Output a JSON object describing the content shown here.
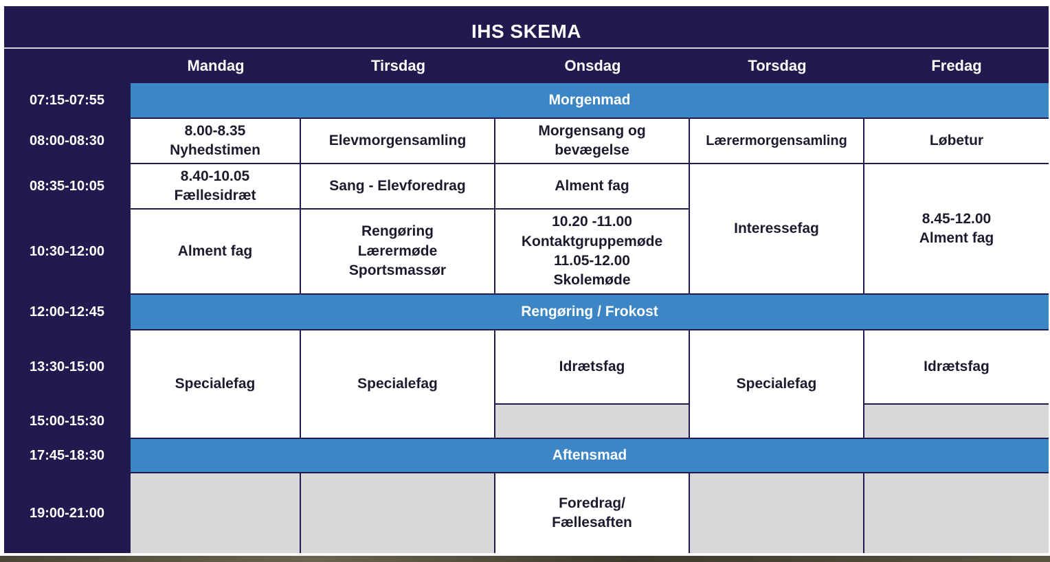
{
  "title": "IHS SKEMA",
  "days": [
    "Mandag",
    "Tirsdag",
    "Onsdag",
    "Torsdag",
    "Fredag"
  ],
  "times": [
    "07:15-07:55",
    "08:00-08:30",
    "08:35-10:05",
    "10:30-12:00",
    "12:00-12:45",
    "13:30-15:00",
    "15:00-15:30",
    "17:45-18:30",
    "19:00-21:00"
  ],
  "bands": {
    "morning": "Morgenmad",
    "lunch": "Rengøring / Frokost",
    "dinner": "Aftensmad"
  },
  "cells": {
    "mon_0800": "8.00-8.35\nNyhedstimen",
    "tue_0800": "Elevmorgensamling",
    "wed_0800": "Morgensang og\nbevægelse",
    "thu_0800": "Lærermorgensamling",
    "fri_0800": "Løbetur",
    "mon_0835": "8.40-10.05\nFællesidræt",
    "tue_0835": "Sang - Elevforedrag",
    "wed_0835": "Alment fag",
    "thu_0835_1200": "Interessefag",
    "fri_0835_1200": "8.45-12.00\nAlment fag",
    "mon_1030": "Alment fag",
    "tue_1030": "Rengøring\nLærermøde\nSportsmassør",
    "wed_1030": "10.20 -11.00\nKontaktgruppemøde\n11.05-12.00\nSkolemøde",
    "mon_1330": "Specialefag",
    "tue_1330": "Specialefag",
    "wed_1330": "Idrætsfag",
    "thu_1330": "Specialefag",
    "fri_1330": "Idrætsfag",
    "wed_1900": "Foredrag/\nFællesaften"
  },
  "colors": {
    "navy": "#211a4e",
    "band_blue": "#3d86c6",
    "empty_gray": "#d8d8d8"
  }
}
